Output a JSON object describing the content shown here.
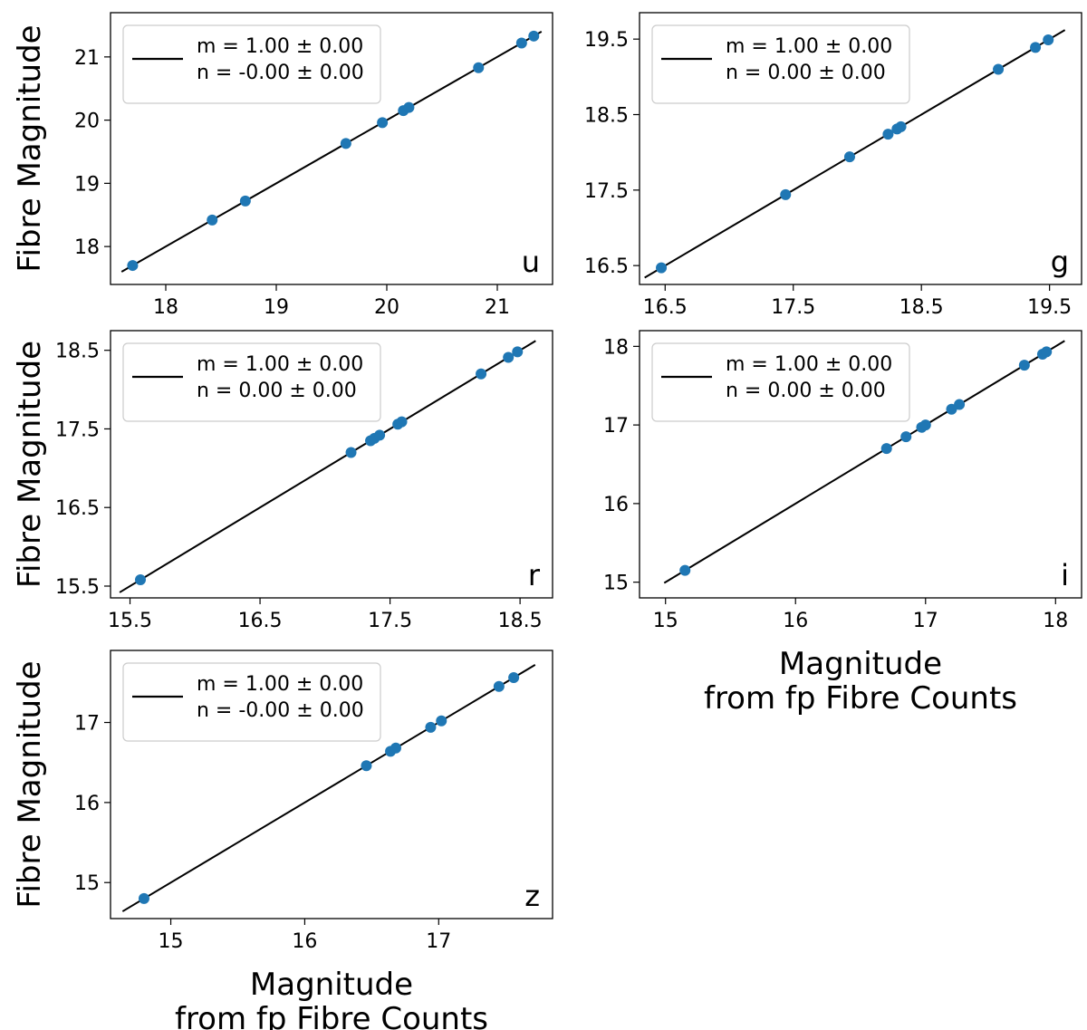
{
  "chart_data": [
    {
      "type": "scatter",
      "panel": "u",
      "ylabel": "Fibre Magnitude",
      "xlabel_lines": [],
      "xlim": [
        17.5,
        21.5
      ],
      "ylim": [
        17.4,
        21.7
      ],
      "xticks": [
        "18",
        "19",
        "20",
        "21"
      ],
      "xtick_values": [
        18,
        19,
        20,
        21
      ],
      "yticks": [
        "18",
        "19",
        "20",
        "21"
      ],
      "ytick_values": [
        18,
        19,
        20,
        21
      ],
      "fit_line": {
        "x": [
          17.6,
          21.4
        ],
        "y": [
          17.6,
          21.4
        ]
      },
      "legend": [
        "m = 1.00 ± 0.00",
        "n = -0.00 ± 0.00"
      ],
      "points": [
        [
          17.7,
          17.7
        ],
        [
          18.42,
          18.42
        ],
        [
          18.72,
          18.72
        ],
        [
          19.63,
          19.63
        ],
        [
          19.96,
          19.96
        ],
        [
          20.15,
          20.15
        ],
        [
          20.2,
          20.2
        ],
        [
          20.83,
          20.83
        ],
        [
          21.22,
          21.22
        ],
        [
          21.33,
          21.33
        ]
      ]
    },
    {
      "type": "scatter",
      "panel": "g",
      "ylabel": "",
      "xlabel_lines": [],
      "xlim": [
        16.3,
        19.75
      ],
      "ylim": [
        16.25,
        19.85
      ],
      "xticks": [
        "16.5",
        "17.5",
        "18.5",
        "19.5"
      ],
      "xtick_values": [
        16.5,
        17.5,
        18.5,
        19.5
      ],
      "yticks": [
        "16.5",
        "17.5",
        "18.5",
        "19.5"
      ],
      "ytick_values": [
        16.5,
        17.5,
        18.5,
        19.5
      ],
      "fit_line": {
        "x": [
          16.34,
          19.62
        ],
        "y": [
          16.34,
          19.62
        ]
      },
      "legend": [
        "m = 1.00 ± 0.00",
        "n = 0.00 ± 0.00"
      ],
      "points": [
        [
          16.47,
          16.47
        ],
        [
          17.44,
          17.44
        ],
        [
          17.94,
          17.94
        ],
        [
          18.24,
          18.24
        ],
        [
          18.31,
          18.31
        ],
        [
          18.34,
          18.34
        ],
        [
          19.1,
          19.1
        ],
        [
          19.39,
          19.39
        ],
        [
          19.49,
          19.49
        ]
      ]
    },
    {
      "type": "scatter",
      "panel": "r",
      "ylabel": "Fibre Magnitude",
      "xlabel_lines": [],
      "xlim": [
        15.35,
        18.75
      ],
      "ylim": [
        15.35,
        18.75
      ],
      "xticks": [
        "15.5",
        "16.5",
        "17.5",
        "18.5"
      ],
      "xtick_values": [
        15.5,
        16.5,
        17.5,
        18.5
      ],
      "yticks": [
        "15.5",
        "16.5",
        "17.5",
        "18.5"
      ],
      "ytick_values": [
        15.5,
        16.5,
        17.5,
        18.5
      ],
      "fit_line": {
        "x": [
          15.42,
          18.62
        ],
        "y": [
          15.42,
          18.62
        ]
      },
      "legend": [
        "m = 1.00 ± 0.00",
        "n = 0.00 ± 0.00"
      ],
      "points": [
        [
          15.58,
          15.58
        ],
        [
          17.2,
          17.2
        ],
        [
          17.35,
          17.35
        ],
        [
          17.38,
          17.38
        ],
        [
          17.42,
          17.42
        ],
        [
          17.56,
          17.56
        ],
        [
          17.59,
          17.59
        ],
        [
          18.2,
          18.2
        ],
        [
          18.41,
          18.41
        ],
        [
          18.48,
          18.48
        ]
      ]
    },
    {
      "type": "scatter",
      "panel": "i",
      "ylabel": "",
      "xlabel_lines": [
        "Magnitude",
        "from fp Fibre Counts"
      ],
      "xlim": [
        14.8,
        18.2
      ],
      "ylim": [
        14.8,
        18.2
      ],
      "xticks": [
        "15",
        "16",
        "17",
        "18"
      ],
      "xtick_values": [
        15,
        16,
        17,
        18
      ],
      "yticks": [
        "15",
        "16",
        "17",
        "18"
      ],
      "ytick_values": [
        15,
        16,
        17,
        18
      ],
      "fit_line": {
        "x": [
          14.99,
          18.07
        ],
        "y": [
          14.99,
          18.07
        ]
      },
      "legend": [
        "m = 1.00 ± 0.00",
        "n = 0.00 ± 0.00"
      ],
      "points": [
        [
          15.15,
          15.15
        ],
        [
          16.7,
          16.7
        ],
        [
          16.85,
          16.85
        ],
        [
          16.97,
          16.97
        ],
        [
          17.0,
          17.0
        ],
        [
          17.2,
          17.2
        ],
        [
          17.26,
          17.26
        ],
        [
          17.76,
          17.76
        ],
        [
          17.9,
          17.9
        ],
        [
          17.93,
          17.93
        ]
      ]
    },
    {
      "type": "scatter",
      "panel": "z",
      "ylabel": "Fibre Magnitude",
      "xlabel_lines": [
        "Magnitude",
        "from fp Fibre Counts"
      ],
      "xlim": [
        14.55,
        17.85
      ],
      "ylim": [
        14.55,
        17.9
      ],
      "xticks": [
        "15",
        "16",
        "17"
      ],
      "xtick_values": [
        15,
        16,
        17
      ],
      "yticks": [
        "15",
        "16",
        "17"
      ],
      "ytick_values": [
        15,
        16,
        17
      ],
      "fit_line": {
        "x": [
          14.64,
          17.72
        ],
        "y": [
          14.64,
          17.72
        ]
      },
      "legend": [
        "m = 1.00 ± 0.00",
        "n = -0.00 ± 0.00"
      ],
      "points": [
        [
          14.8,
          14.8
        ],
        [
          16.46,
          16.46
        ],
        [
          16.64,
          16.64
        ],
        [
          16.68,
          16.68
        ],
        [
          16.94,
          16.94
        ],
        [
          17.02,
          17.02
        ],
        [
          17.45,
          17.45
        ],
        [
          17.56,
          17.56
        ]
      ]
    }
  ],
  "colors": {
    "points": "#1f77b4",
    "fit_line": "#000000",
    "legend_border": "#cccccc"
  }
}
